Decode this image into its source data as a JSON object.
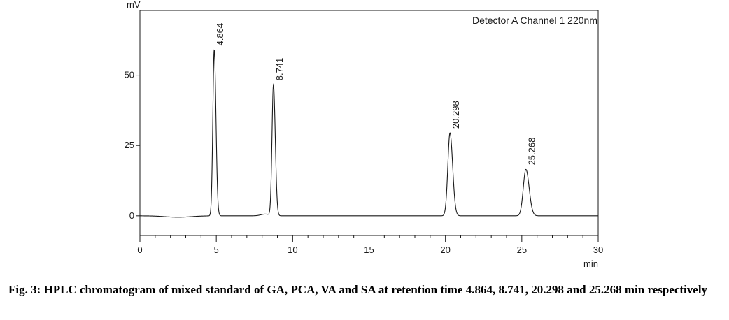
{
  "figure": {
    "caption_label": "Fig. 3:",
    "caption_text": "HPLC chromatogram of mixed standard of GA, PCA, VA and SA at retention time 4.864, 8.741, 20.298 and 25.268 min respectively"
  },
  "chart_data": {
    "type": "line",
    "title": "",
    "legend_text": "Detector A Channel 1 220nm",
    "xlabel": "min",
    "ylabel": "mV",
    "xlim": [
      0,
      30
    ],
    "ylim": [
      -7,
      73
    ],
    "x_ticks": [
      0,
      5,
      10,
      15,
      20,
      25,
      30
    ],
    "y_ticks": [
      0,
      25,
      50
    ],
    "grid": false,
    "series": [
      {
        "baseline": 0,
        "peaks": [
          {
            "rt": 4.864,
            "label": "4.864",
            "height": 59,
            "sigma": 0.09
          },
          {
            "rt": 8.741,
            "label": "8.741",
            "height": 46.5,
            "sigma": 0.095
          },
          {
            "rt": 20.298,
            "label": "20.298",
            "height": 29.5,
            "sigma": 0.14
          },
          {
            "rt": 25.268,
            "label": "25.268",
            "height": 16.5,
            "sigma": 0.17
          }
        ]
      }
    ]
  },
  "colors": {
    "trace": "#1a1a1a",
    "axis": "#1a1a1a"
  }
}
